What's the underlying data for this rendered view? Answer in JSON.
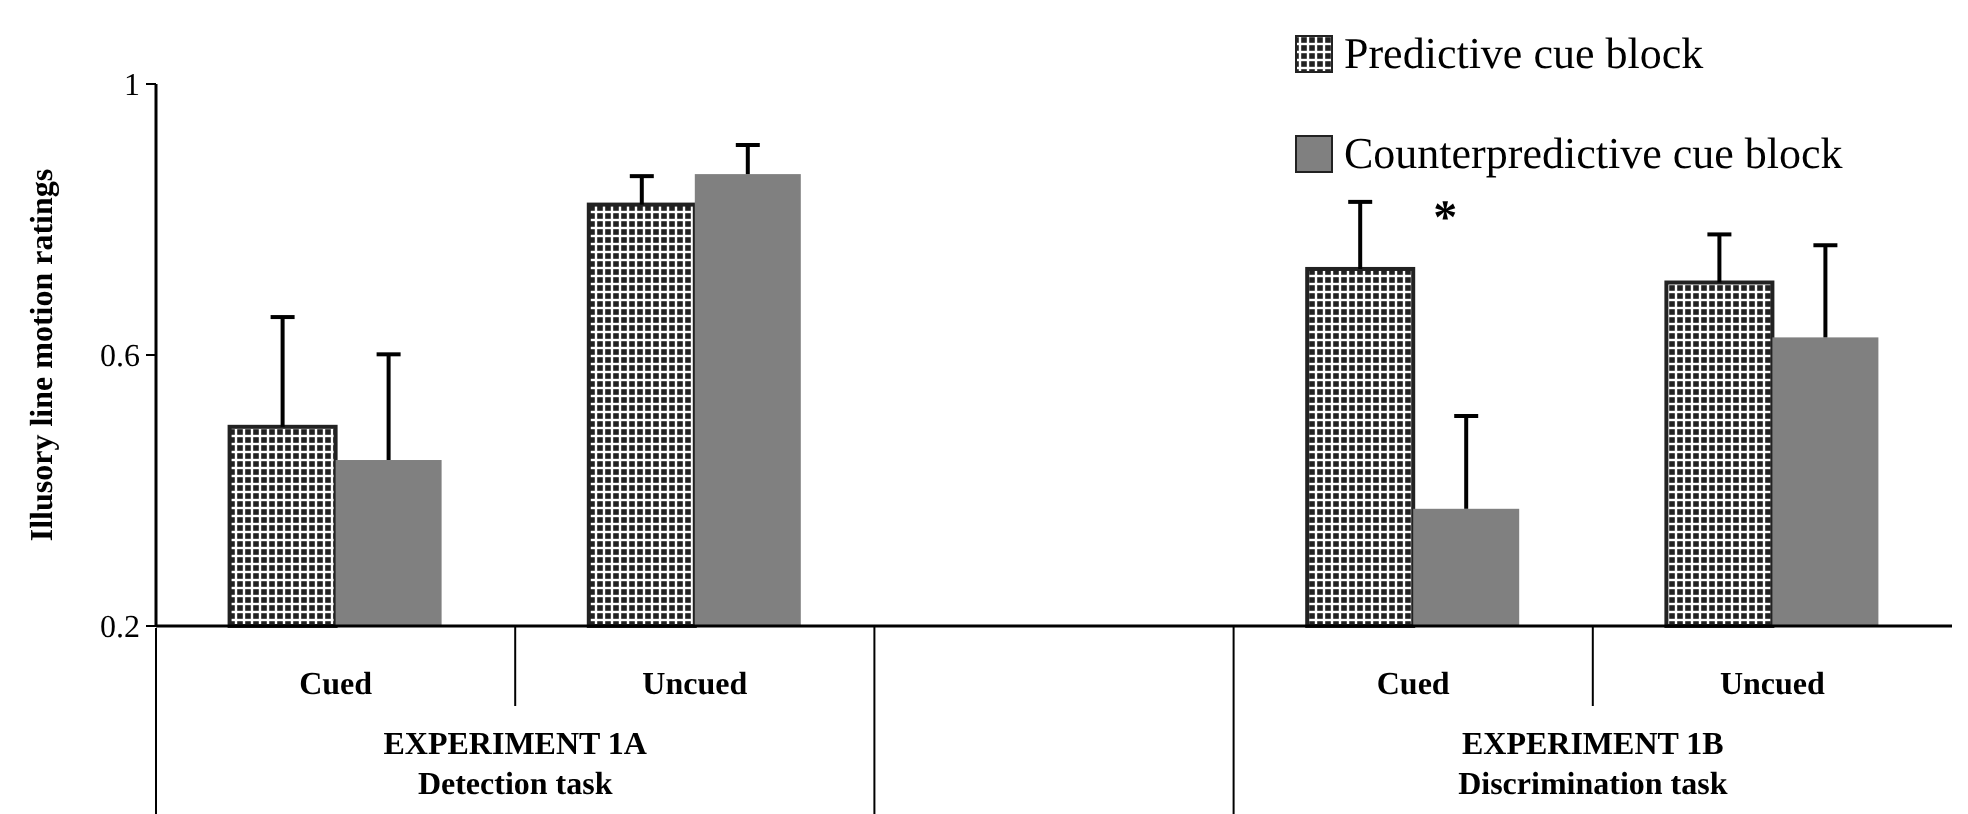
{
  "chart_data": {
    "type": "bar",
    "ylabel": "Illusory line motion ratings",
    "categories": [
      "Cued",
      "Uncued",
      null,
      "Cued",
      "Uncued"
    ],
    "series": [
      {
        "name": "Predictive cue block",
        "color": "#222222",
        "values": [
          0.494,
          0.822,
          null,
          0.727,
          0.707
        ],
        "errors": [
          [
            0.494,
            0.656
          ],
          [
            0.822,
            0.864
          ],
          null,
          [
            0.727,
            0.826
          ],
          [
            0.707,
            0.778
          ]
        ]
      },
      {
        "name": "Counterpredictive cue block",
        "color": "#808080",
        "values": [
          0.445,
          0.867,
          null,
          0.373,
          0.626
        ],
        "errors": [
          [
            0.445,
            0.601
          ],
          [
            0.867,
            0.91
          ],
          null,
          [
            0.373,
            0.51
          ],
          [
            0.626,
            0.762
          ]
        ]
      }
    ],
    "ylim": [
      0.2,
      1
    ],
    "yticks": [
      0.2,
      0.6,
      1
    ],
    "legend": "top right",
    "annotations": [
      "*",
      "EXPERIMENT 1A\nDetection task",
      "EXPERIMENT 1B\nDiscrimination task"
    ]
  }
}
